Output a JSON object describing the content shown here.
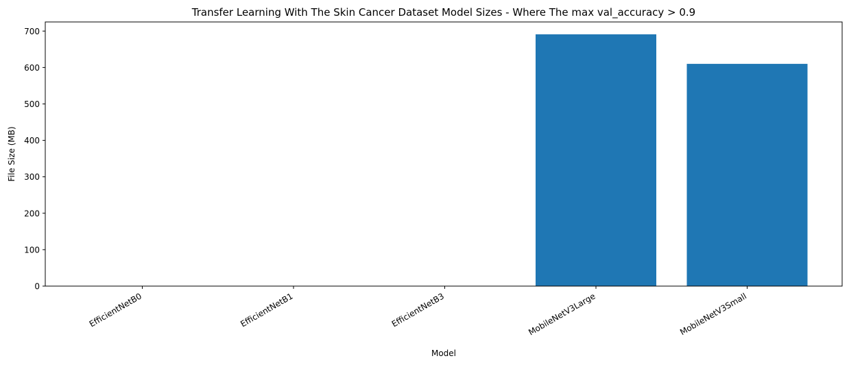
{
  "chart_data": {
    "type": "bar",
    "title": "Transfer Learning With The Skin Cancer Dataset Model Sizes - Where The max val_accuracy > 0.9",
    "xlabel": "Model",
    "ylabel": "File Size (MB)",
    "categories": [
      "EfficientNetB0",
      "EfficientNetB1",
      "EfficientNetB3",
      "MobileNetV3Large",
      "MobileNetV3Small"
    ],
    "values": [
      0,
      0,
      0,
      691,
      610
    ],
    "ylim": [
      0,
      725
    ],
    "yticks": [
      0,
      100,
      200,
      300,
      400,
      500,
      600,
      700
    ],
    "bar_color": "#1f77b4",
    "grid": false,
    "legend": "none"
  }
}
